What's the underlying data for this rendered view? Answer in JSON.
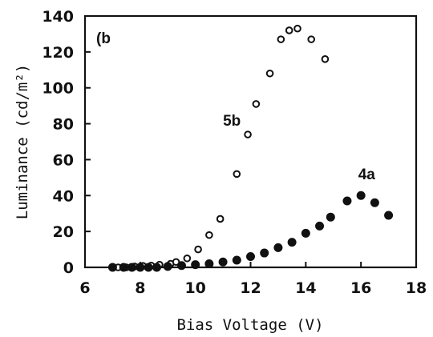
{
  "chart_data": {
    "type": "scatter",
    "panel_label": "(b",
    "xlabel": "Bias Voltage (V)",
    "ylabel": "Luminance (cd/m²)",
    "xlim": [
      6,
      18
    ],
    "ylim": [
      0,
      140
    ],
    "x_ticks": [
      6,
      8,
      10,
      12,
      14,
      16,
      18
    ],
    "y_ticks": [
      0,
      20,
      40,
      60,
      80,
      100,
      120,
      140
    ],
    "grid": false,
    "legend": "none",
    "series": [
      {
        "name": "5b",
        "marker": "open-circle",
        "points": [
          {
            "x": 7.2,
            "y": 0
          },
          {
            "x": 7.5,
            "y": 0
          },
          {
            "x": 7.8,
            "y": 0.5
          },
          {
            "x": 8.1,
            "y": 0.8
          },
          {
            "x": 8.4,
            "y": 1
          },
          {
            "x": 8.7,
            "y": 1.5
          },
          {
            "x": 9.1,
            "y": 2
          },
          {
            "x": 9.3,
            "y": 3
          },
          {
            "x": 9.7,
            "y": 5
          },
          {
            "x": 10.1,
            "y": 10
          },
          {
            "x": 10.5,
            "y": 18
          },
          {
            "x": 10.9,
            "y": 27
          },
          {
            "x": 11.5,
            "y": 52
          },
          {
            "x": 11.9,
            "y": 74
          },
          {
            "x": 12.2,
            "y": 91
          },
          {
            "x": 12.7,
            "y": 108
          },
          {
            "x": 13.1,
            "y": 127
          },
          {
            "x": 13.4,
            "y": 132
          },
          {
            "x": 13.7,
            "y": 133
          },
          {
            "x": 14.2,
            "y": 127
          },
          {
            "x": 14.7,
            "y": 116
          }
        ]
      },
      {
        "name": "4a",
        "marker": "filled-circle",
        "points": [
          {
            "x": 7.0,
            "y": 0
          },
          {
            "x": 7.4,
            "y": 0
          },
          {
            "x": 7.7,
            "y": 0
          },
          {
            "x": 8.0,
            "y": 0
          },
          {
            "x": 8.3,
            "y": 0
          },
          {
            "x": 8.6,
            "y": 0
          },
          {
            "x": 9.0,
            "y": 0.5
          },
          {
            "x": 9.5,
            "y": 1
          },
          {
            "x": 10.0,
            "y": 1.5
          },
          {
            "x": 10.5,
            "y": 2
          },
          {
            "x": 11.0,
            "y": 3
          },
          {
            "x": 11.5,
            "y": 4
          },
          {
            "x": 12.0,
            "y": 6
          },
          {
            "x": 12.5,
            "y": 8
          },
          {
            "x": 13.0,
            "y": 11
          },
          {
            "x": 13.5,
            "y": 14
          },
          {
            "x": 14.0,
            "y": 19
          },
          {
            "x": 14.5,
            "y": 23
          },
          {
            "x": 14.9,
            "y": 28
          },
          {
            "x": 15.5,
            "y": 37
          },
          {
            "x": 16.0,
            "y": 40
          },
          {
            "x": 16.5,
            "y": 36
          },
          {
            "x": 17.0,
            "y": 29
          }
        ]
      }
    ],
    "annotations": [
      {
        "text": "5b",
        "x": 11.0,
        "y": 79
      },
      {
        "text": "4a",
        "x": 15.9,
        "y": 49
      }
    ]
  }
}
